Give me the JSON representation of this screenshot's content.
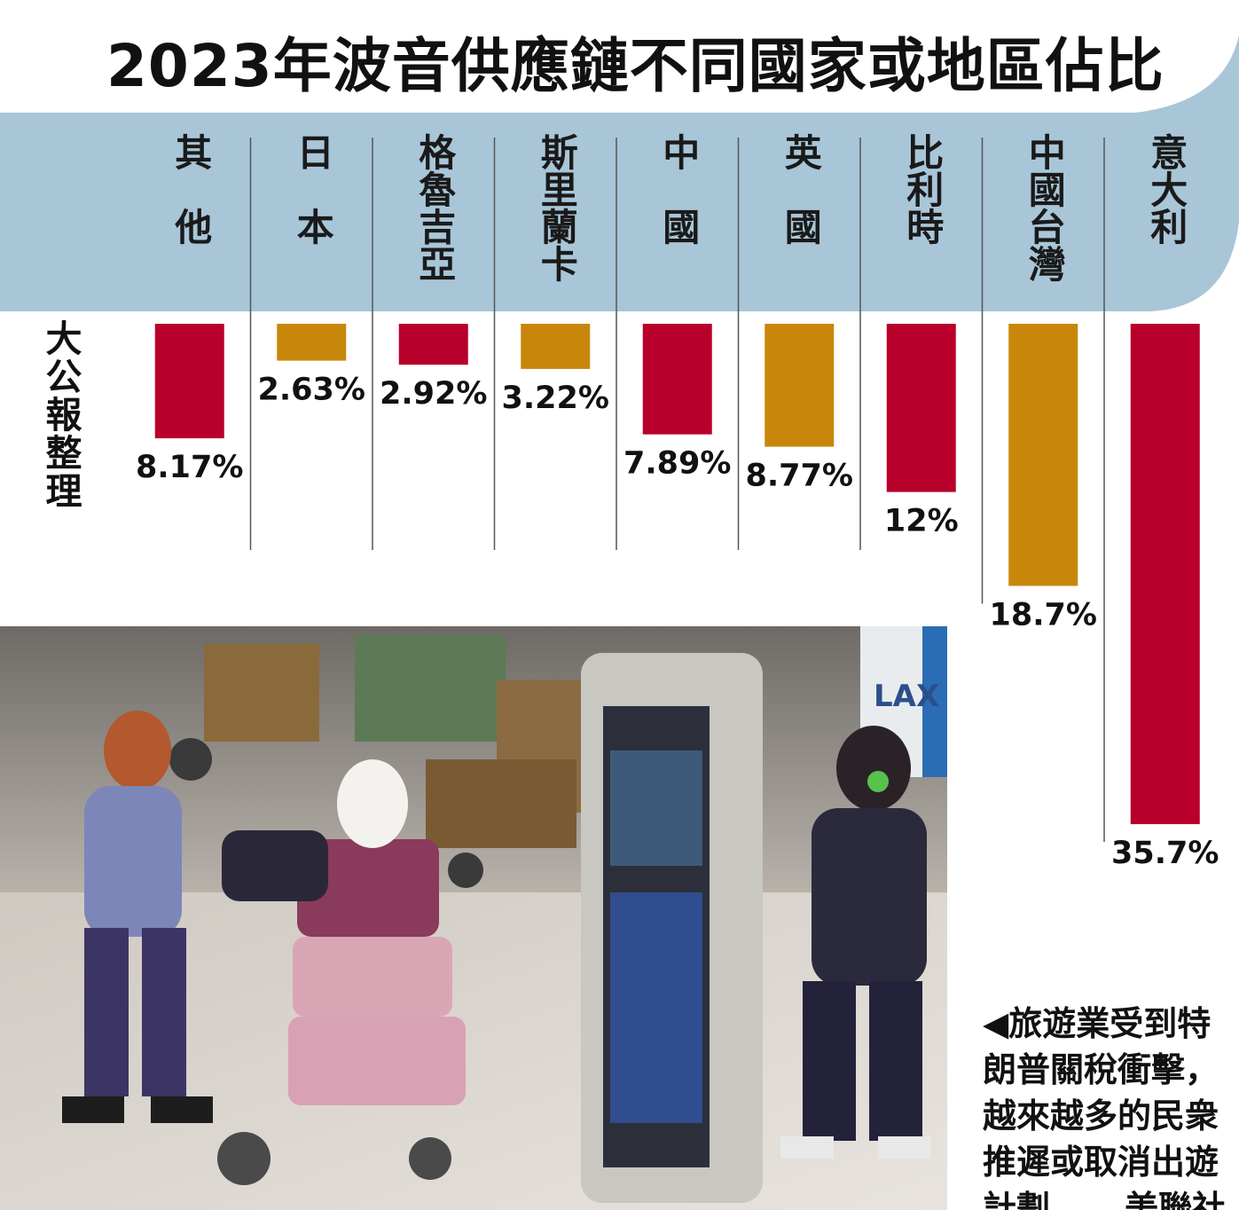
{
  "chart_data": {
    "type": "bar",
    "title": "2023年波音供應鏈不同國家或地區佔比",
    "orientation": "vertical-downward",
    "categories": [
      "其他",
      "日本",
      "格魯吉亞",
      "斯里蘭卡",
      "中國",
      "英國",
      "比利時",
      "中國台灣",
      "意大利"
    ],
    "values": [
      8.17,
      2.63,
      2.92,
      3.22,
      7.89,
      8.77,
      12,
      18.7,
      35.7
    ],
    "value_labels": [
      "8.17%",
      "2.63%",
      "2.92%",
      "3.22%",
      "7.89%",
      "8.77%",
      "12%",
      "18.7%",
      "35.7%"
    ],
    "bar_colors": [
      "#b8002a",
      "#c8870a",
      "#b8002a",
      "#c8870a",
      "#b8002a",
      "#c8870a",
      "#b8002a",
      "#c8870a",
      "#b8002a"
    ],
    "unit": "%",
    "source": "大公報整理",
    "grid": false,
    "legend": "none"
  },
  "colors": {
    "band": "#a8c6d8",
    "red": "#b8002a",
    "gold": "#c8870a",
    "divider": "#555555"
  },
  "photo": {
    "signage_text": "LAX"
  },
  "caption": {
    "lines": [
      "◀旅遊業受到特",
      "朗普關稅衝擊，",
      "越來越多的民衆",
      "推遲或取消出遊"
    ],
    "last_line": "計劃。",
    "credit": "美聯社"
  }
}
